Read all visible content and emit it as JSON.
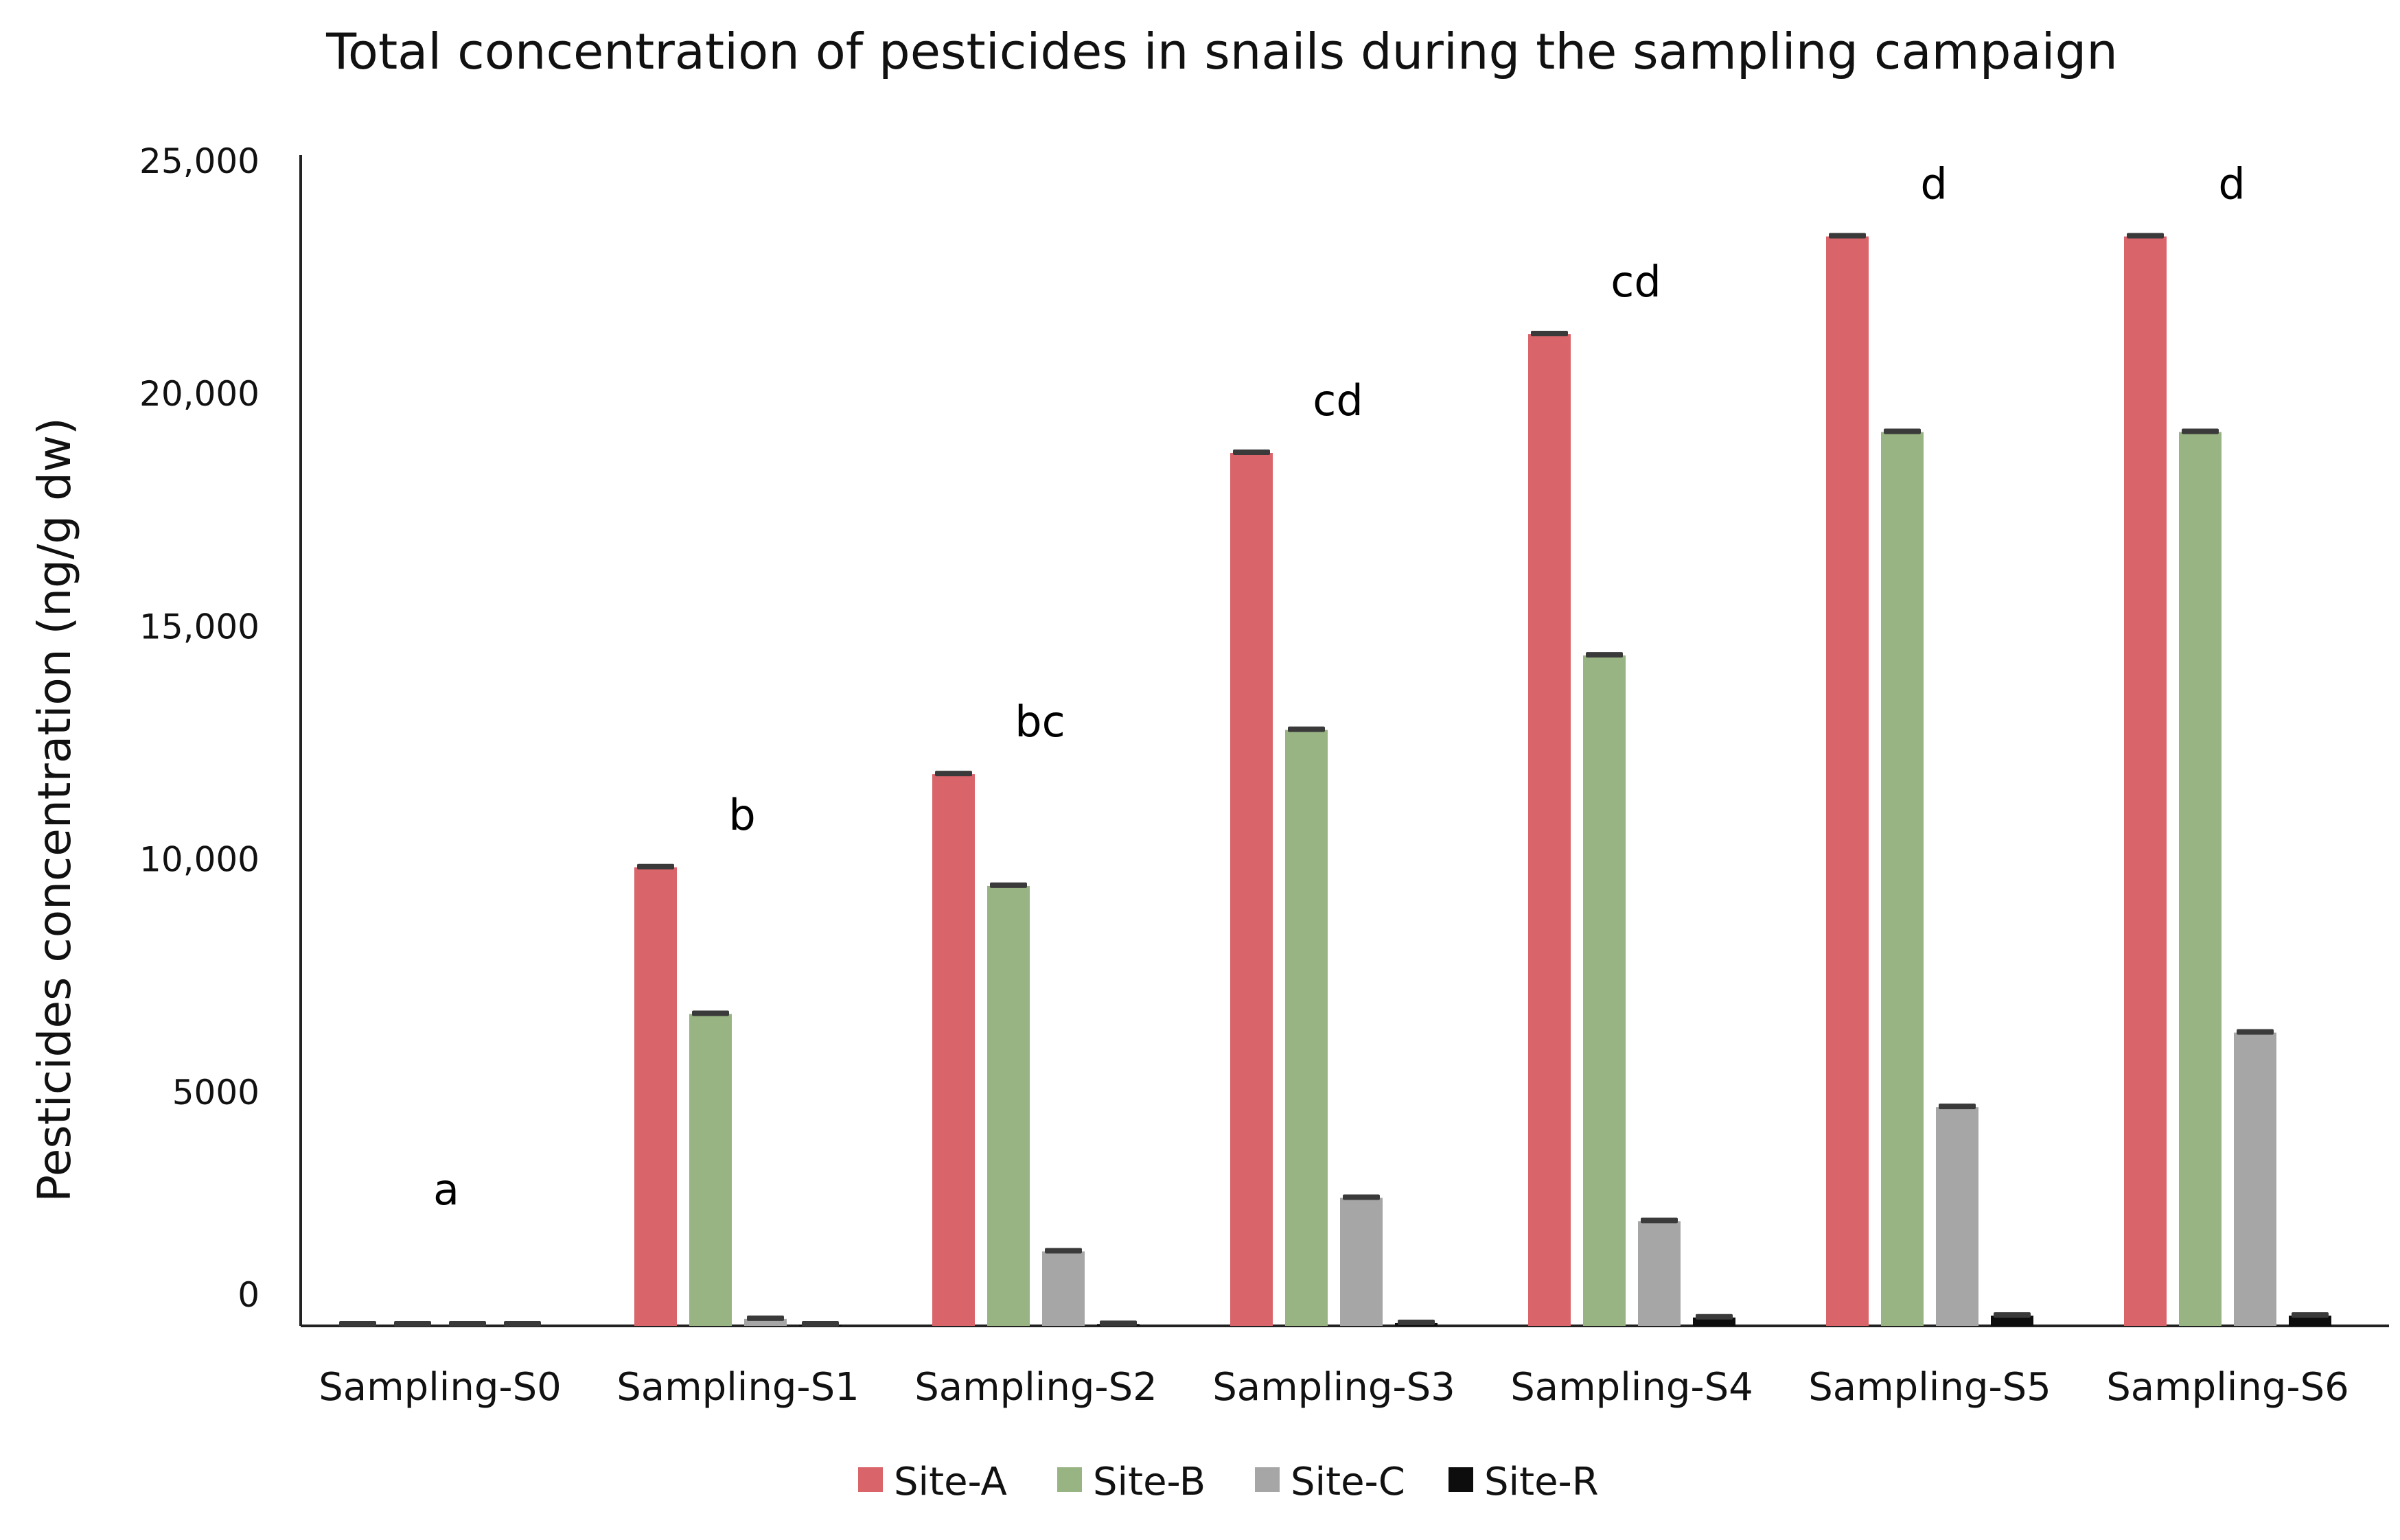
{
  "chart_data": {
    "type": "bar",
    "title": "Total concentration of pesticides in snails during the sampling campaign",
    "xlabel": "",
    "ylabel": "Pesticides  concentration (ng/g dw)",
    "ylim": [
      0,
      25000
    ],
    "yticks": [
      {
        "value": 0,
        "label": "0"
      },
      {
        "value": 5000,
        "label": "5000"
      },
      {
        "value": 10000,
        "label": "10,000"
      },
      {
        "value": 15000,
        "label": "15,000"
      },
      {
        "value": 20000,
        "label": "20,000"
      },
      {
        "value": 25000,
        "label": "25,000"
      }
    ],
    "categories": [
      "Sampling-S0",
      "Sampling-S1",
      "Sampling-S2",
      "Sampling-S3",
      "Sampling-S4",
      "Sampling-S5",
      "Sampling-S6"
    ],
    "series": [
      {
        "name": "Site-A",
        "color": "#d9646a",
        "values": [
          0,
          9850,
          11850,
          18750,
          21300,
          23400,
          23400
        ]
      },
      {
        "name": "Site-B",
        "color": "#99b483",
        "values": [
          0,
          6700,
          9450,
          12800,
          14400,
          19200,
          19200
        ]
      },
      {
        "name": "Site-C",
        "color": "#a6a6a6",
        "values": [
          0,
          150,
          1600,
          2750,
          2250,
          4700,
          6300
        ]
      },
      {
        "name": "Site-R",
        "color": "#0d0d0d",
        "values": [
          0,
          20,
          40,
          60,
          180,
          220,
          220
        ]
      }
    ],
    "significance_labels": [
      "a",
      "b",
      "bc",
      "cd",
      "cd",
      "d",
      "d"
    ],
    "legend": {
      "position": "bottom-center"
    },
    "grid": false,
    "error_bars": true
  }
}
